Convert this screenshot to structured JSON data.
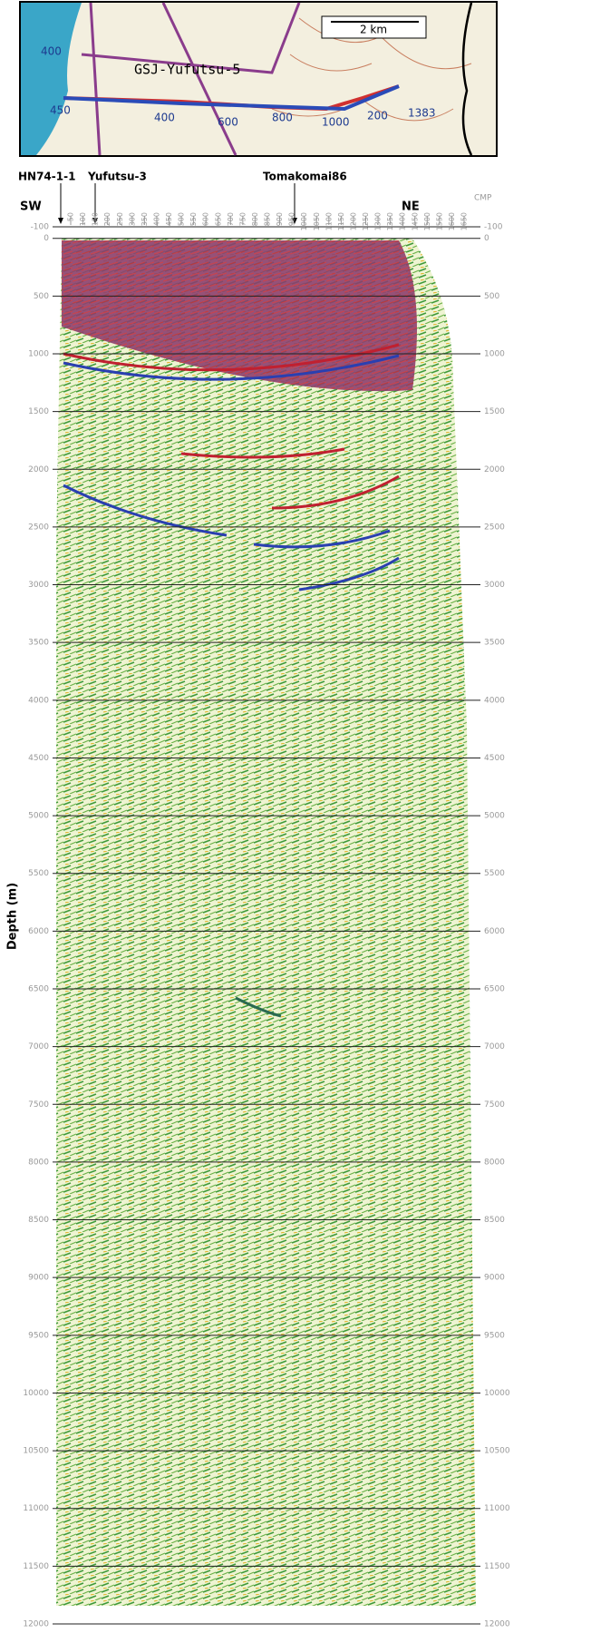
{
  "map": {
    "scale_label": "2 km",
    "line_name": "GSJ-Yufutsu-5",
    "labels": [
      "400",
      "450",
      "1383",
      "1000",
      "600",
      "400",
      "200",
      "800"
    ]
  },
  "section": {
    "y_label": "Depth (m)",
    "side_labels": [
      "SW",
      "NE"
    ],
    "wells": [
      "HN74-1-1",
      "Yufutsu-3",
      "Tomakomai86"
    ],
    "cmp_label": "CMP",
    "cmp_ticks": [
      50,
      100,
      150,
      200,
      250,
      300,
      350,
      400,
      450,
      500,
      550,
      600,
      650,
      700,
      750,
      800,
      850,
      900,
      950,
      1000,
      1050,
      1100,
      1150,
      1200,
      1250,
      1300,
      1350,
      1400,
      1450,
      1500,
      1550,
      1600,
      1650
    ],
    "depth_ticks": [
      -100,
      0,
      500,
      1000,
      1500,
      2000,
      2500,
      3000,
      3500,
      4000,
      4500,
      5000,
      5500,
      6000,
      6500,
      7000,
      7500,
      8000,
      8500,
      9000,
      9500,
      10000,
      10500,
      11000,
      11500,
      12000
    ]
  }
}
